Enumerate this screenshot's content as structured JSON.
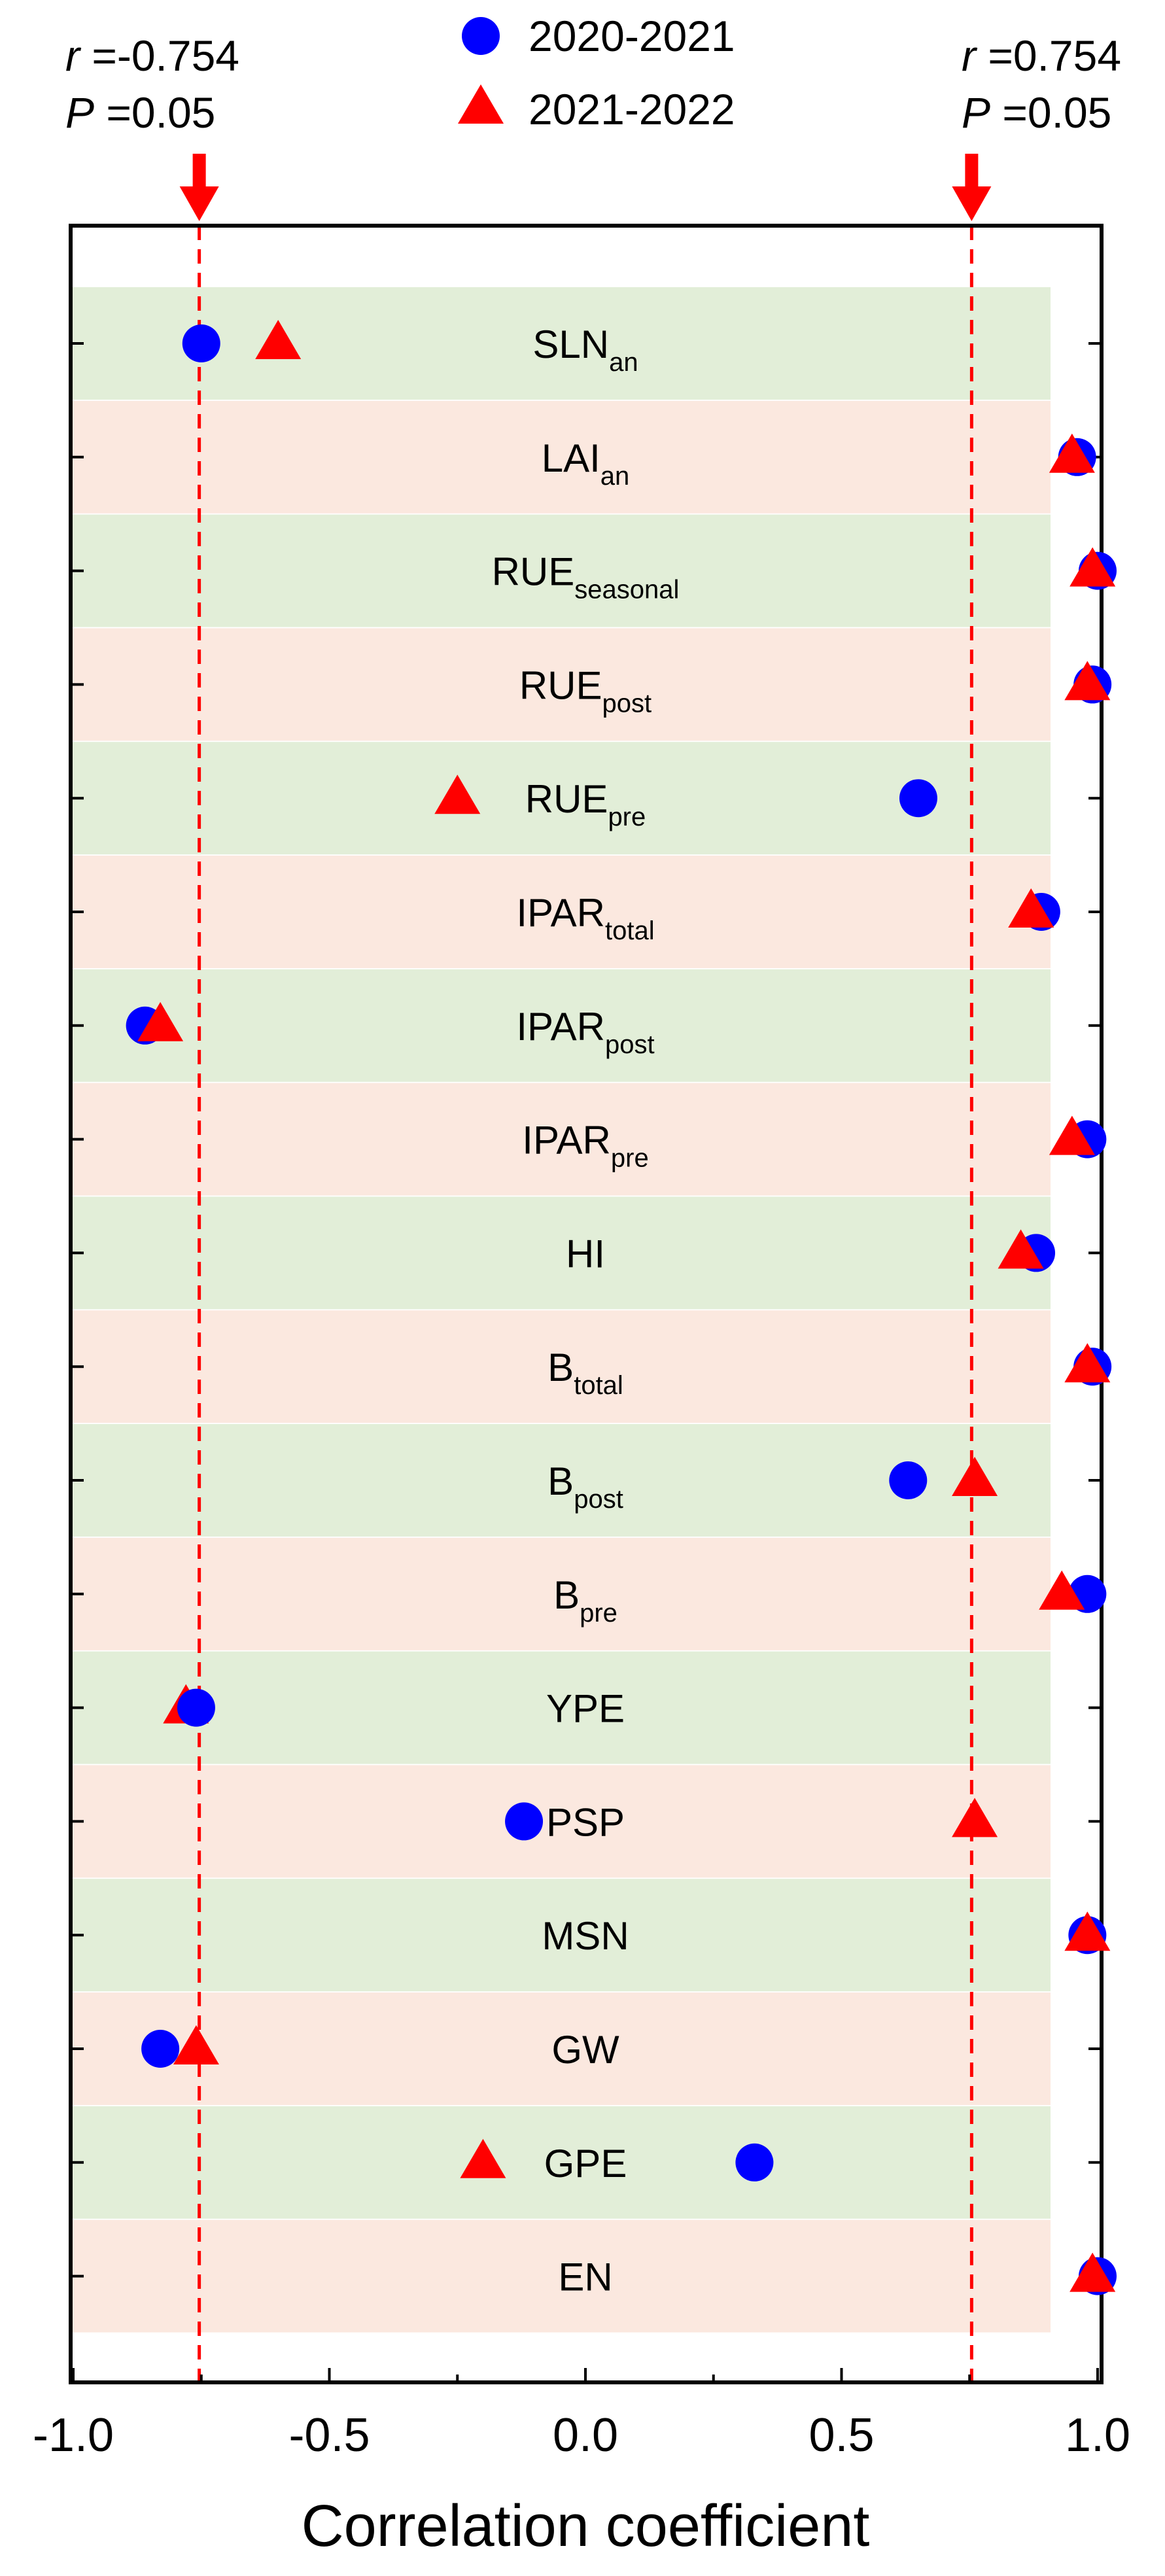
{
  "chart_data": {
    "type": "scatter",
    "xlabel": "Correlation coefficient",
    "xlim": [
      -1.0,
      1.0
    ],
    "xticks": [
      "-1.0",
      "-0.5",
      "0.0",
      "0.5",
      "1.0"
    ],
    "tick_values": [
      -1.0,
      -0.5,
      0.0,
      0.5,
      1.0
    ],
    "legend_position": "top-center",
    "row_colors": [
      "#e2eed8",
      "#fbe8df"
    ],
    "series": [
      {
        "name": "2020-2021",
        "marker": "circle",
        "color": "#0000ff"
      },
      {
        "name": "2021-2022",
        "marker": "triangle",
        "color": "#ff0000"
      }
    ],
    "rows": [
      {
        "label": "SLN",
        "sub": "an",
        "v2020": -0.75,
        "v2021": -0.6
      },
      {
        "label": "LAI",
        "sub": "an",
        "v2020": 0.96,
        "v2021": 0.95
      },
      {
        "label": "RUE",
        "sub": "seasonal",
        "v2020": 1.0,
        "v2021": 0.99
      },
      {
        "label": "RUE",
        "sub": "post",
        "v2020": 0.99,
        "v2021": 0.98
      },
      {
        "label": "RUE",
        "sub": "pre",
        "v2020": 0.65,
        "v2021": -0.25
      },
      {
        "label": "IPAR",
        "sub": "total",
        "v2020": 0.89,
        "v2021": 0.87
      },
      {
        "label": "IPAR",
        "sub": "post",
        "v2020": -0.86,
        "v2021": -0.83
      },
      {
        "label": "IPAR",
        "sub": "pre",
        "v2020": 0.98,
        "v2021": 0.95
      },
      {
        "label": "HI",
        "sub": "",
        "v2020": 0.88,
        "v2021": 0.85
      },
      {
        "label": "B",
        "sub": "total",
        "v2020": 0.99,
        "v2021": 0.98
      },
      {
        "label": "B",
        "sub": "post",
        "v2020": 0.63,
        "v2021": 0.76
      },
      {
        "label": "B",
        "sub": "pre",
        "v2020": 0.98,
        "v2021": 0.93
      },
      {
        "label": "YPE",
        "sub": "",
        "v2020": -0.76,
        "v2021": -0.78
      },
      {
        "label": "PSP",
        "sub": "",
        "v2020": -0.12,
        "v2021": 0.76
      },
      {
        "label": "MSN",
        "sub": "",
        "v2020": 0.98,
        "v2021": 0.98
      },
      {
        "label": "GW",
        "sub": "",
        "v2020": -0.83,
        "v2021": -0.76
      },
      {
        "label": "GPE",
        "sub": "",
        "v2020": 0.33,
        "v2021": -0.2
      },
      {
        "label": "EN",
        "sub": "",
        "v2020": 1.0,
        "v2021": 0.99
      }
    ],
    "threshold_lines": [
      {
        "value": -0.754,
        "r_label": "r",
        "r_value": " =-0.754",
        "p_label": "P",
        "p_value": " =0.05",
        "color": "#ff0000"
      },
      {
        "value": 0.754,
        "r_label": "r",
        "r_value": " =0.754",
        "p_label": "P",
        "p_value": " =0.05",
        "color": "#ff0000"
      }
    ]
  }
}
